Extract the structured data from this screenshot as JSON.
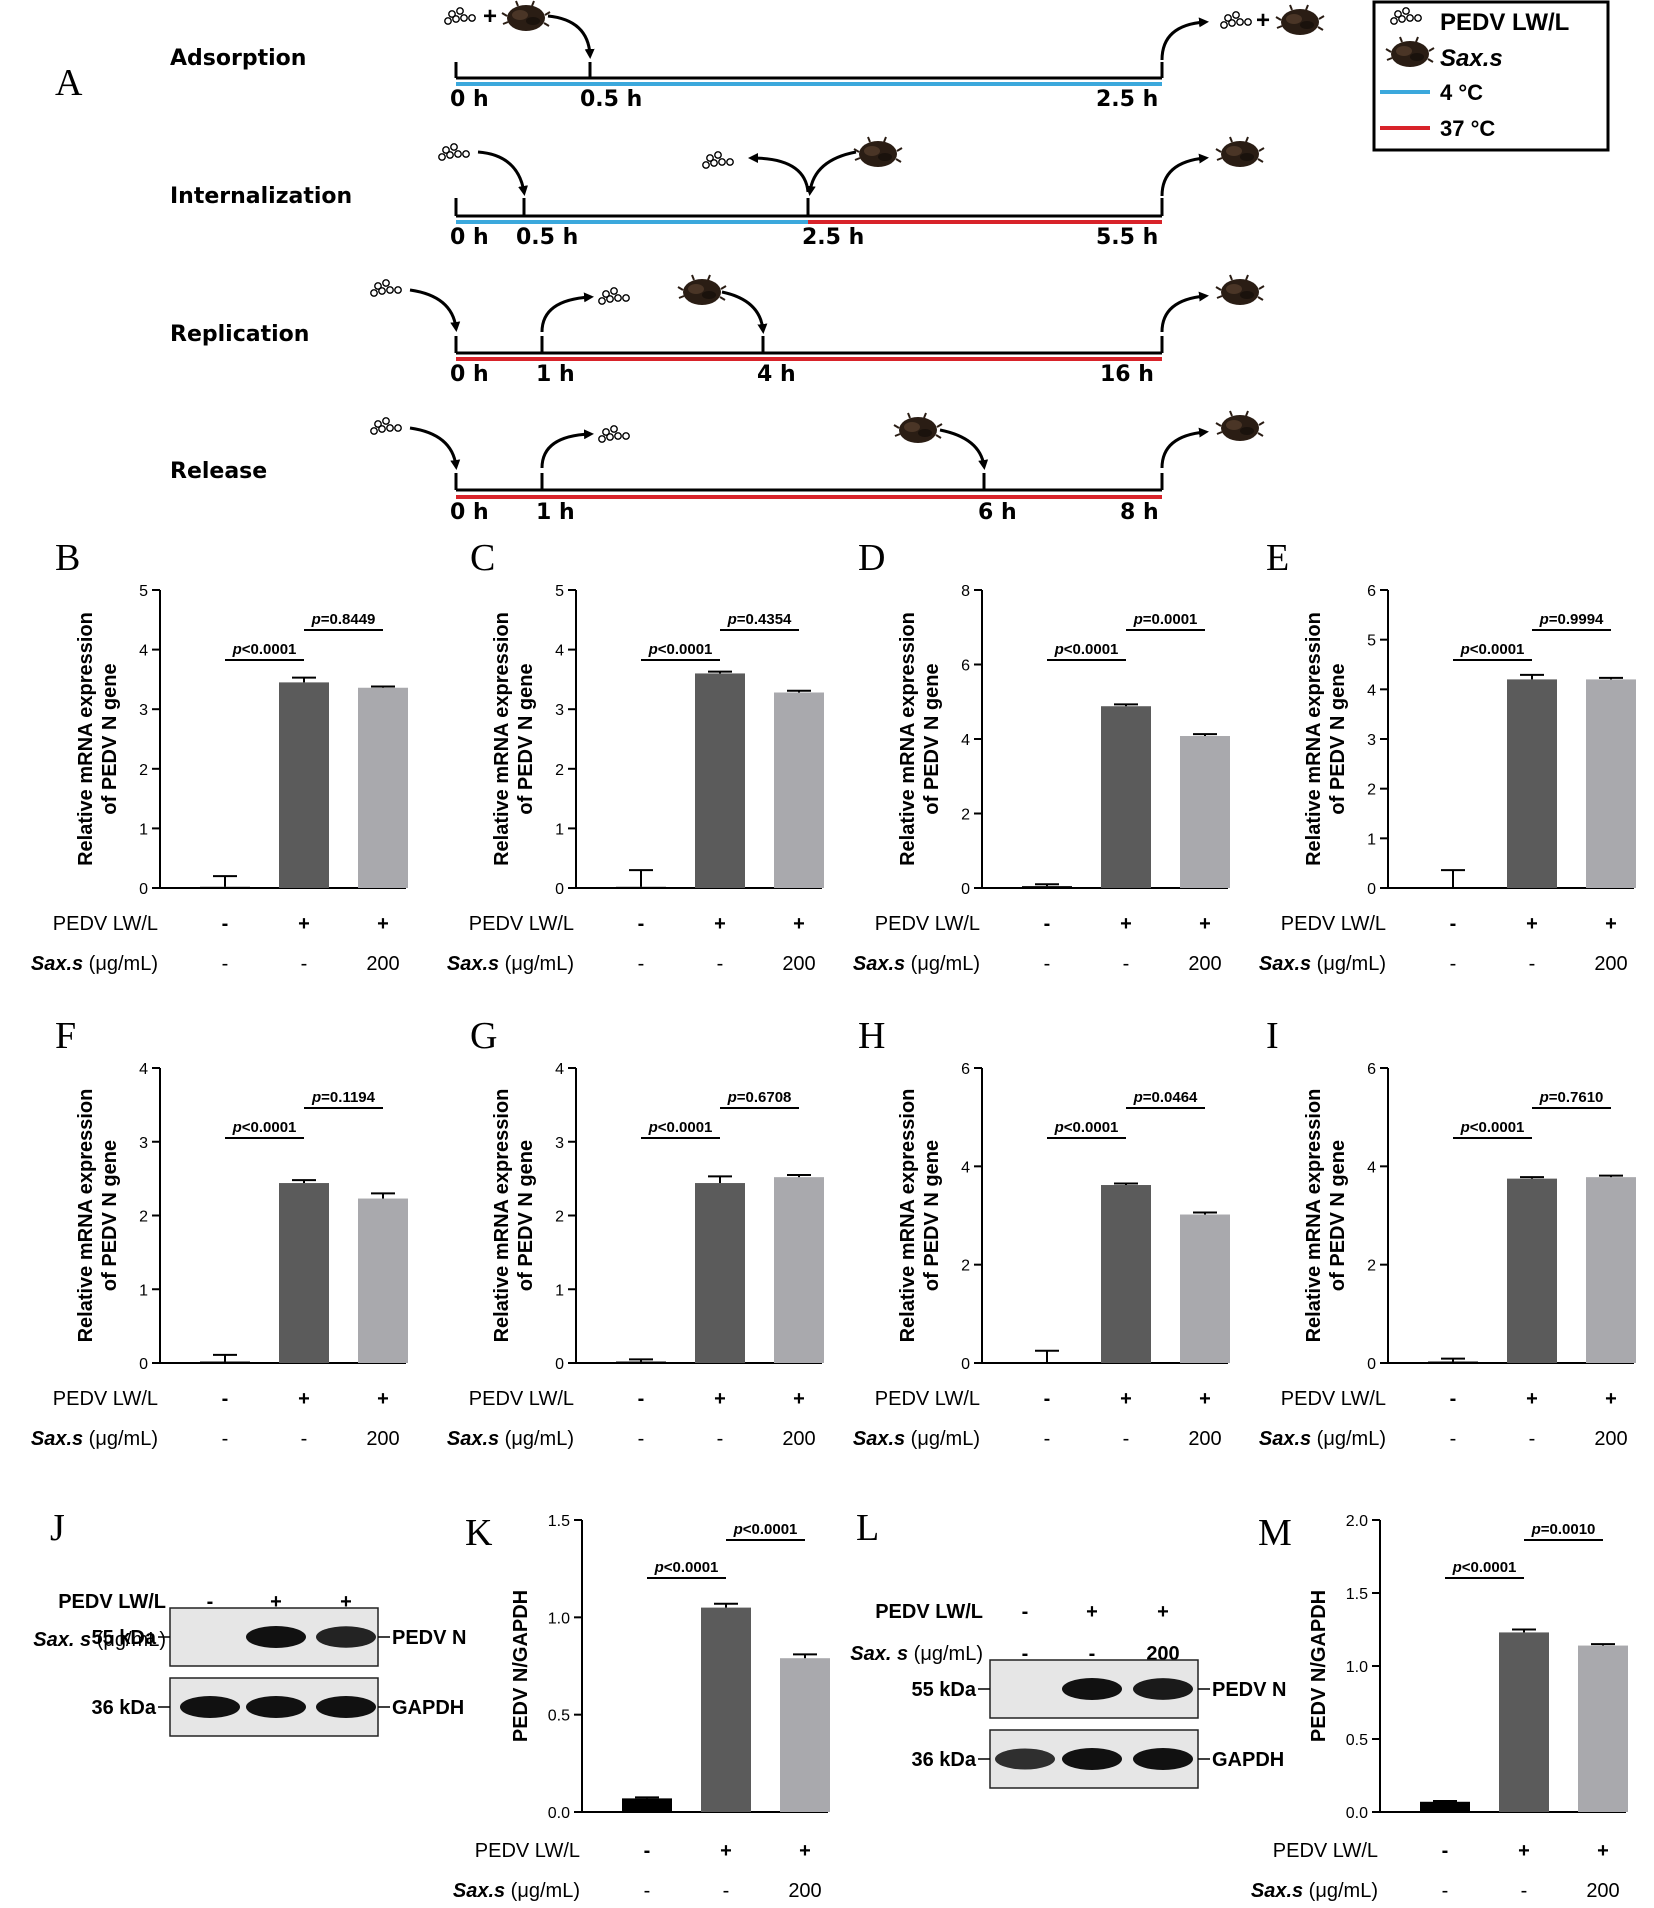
{
  "panel_A": {
    "letter": "A",
    "legend": {
      "virus": "PEDV LW/L",
      "drug": "Sax.s",
      "cold": "4 °C",
      "warm": "37 °C"
    },
    "colors": {
      "cold": "#3ba8dc",
      "warm": "#d8232a",
      "axis": "#000000"
    },
    "rows": [
      {
        "name": "Adsorption",
        "ticks": [
          "0 h",
          "0.5 h",
          "2.5 h"
        ]
      },
      {
        "name": "Internalization",
        "ticks": [
          "0 h",
          "0.5 h",
          "2.5 h",
          "5.5 h"
        ]
      },
      {
        "name": "Replication",
        "ticks": [
          "0 h",
          "1 h",
          "4 h",
          "16 h"
        ]
      },
      {
        "name": "Release",
        "ticks": [
          "0 h",
          "1 h",
          "6 h",
          "8 h"
        ]
      }
    ]
  },
  "common": {
    "ylabel_line1": "Relative mRNA expression",
    "ylabel_line2": "of PEDV N gene",
    "wb_ylabel": "PEDV N/GAPDH",
    "row1_label": "PEDV LW/L",
    "row2_label_italic": "Sax.s",
    "row2_label_rest": " (μg/mL)",
    "wb_row2_label_italic": "Sax. s",
    "row1_vals": [
      "-",
      "+",
      "+"
    ],
    "row2_vals": [
      "-",
      "-",
      "200"
    ],
    "bar_colors": [
      "#000000",
      "#5b5b5b",
      "#a9a9ad"
    ]
  },
  "chart_data": [
    {
      "letter": "B",
      "type": "bar",
      "ylim": [
        0,
        5
      ],
      "yticks": [
        "0",
        "1",
        "2",
        "3",
        "4",
        "5"
      ],
      "values": [
        0.02,
        3.45,
        3.36
      ],
      "errors": [
        0.18,
        0.08,
        0.02
      ],
      "p1": "<0.0001",
      "p2": "=0.8449"
    },
    {
      "letter": "C",
      "type": "bar",
      "ylim": [
        0,
        5
      ],
      "yticks": [
        "0",
        "1",
        "2",
        "3",
        "4",
        "5"
      ],
      "values": [
        0.02,
        3.6,
        3.28
      ],
      "errors": [
        0.28,
        0.03,
        0.03
      ],
      "p1": "<0.0001",
      "p2": "=0.4354"
    },
    {
      "letter": "D",
      "type": "bar",
      "ylim": [
        0,
        8
      ],
      "yticks": [
        "0",
        "2",
        "4",
        "6",
        "8"
      ],
      "values": [
        0.05,
        4.88,
        4.08
      ],
      "errors": [
        0.05,
        0.05,
        0.05
      ],
      "p1": "<0.0001",
      "p2": "=0.0001"
    },
    {
      "letter": "E",
      "type": "bar",
      "ylim": [
        0,
        6
      ],
      "yticks": [
        "0",
        "1",
        "2",
        "3",
        "4",
        "5",
        "6"
      ],
      "values": [
        0.02,
        4.2,
        4.2
      ],
      "errors": [
        0.34,
        0.09,
        0.03
      ],
      "p1": "<0.0001",
      "p2": "=0.9994"
    },
    {
      "letter": "F",
      "type": "bar",
      "ylim": [
        0,
        4
      ],
      "yticks": [
        "0",
        "1",
        "2",
        "3",
        "4"
      ],
      "values": [
        0.02,
        2.44,
        2.23
      ],
      "errors": [
        0.09,
        0.04,
        0.07
      ],
      "p1": "<0.0001",
      "p2": "=0.1194"
    },
    {
      "letter": "G",
      "type": "bar",
      "ylim": [
        0,
        4
      ],
      "yticks": [
        "0",
        "1",
        "2",
        "3",
        "4"
      ],
      "values": [
        0.02,
        2.44,
        2.52
      ],
      "errors": [
        0.03,
        0.09,
        0.03
      ],
      "p1": "<0.0001",
      "p2": "=0.6708"
    },
    {
      "letter": "H",
      "type": "bar",
      "ylim": [
        0,
        6
      ],
      "yticks": [
        "0",
        "2",
        "4",
        "6"
      ],
      "values": [
        0.02,
        3.62,
        3.02
      ],
      "errors": [
        0.23,
        0.03,
        0.04
      ],
      "p1": "<0.0001",
      "p2": "=0.0464"
    },
    {
      "letter": "I",
      "type": "bar",
      "ylim": [
        0,
        6
      ],
      "yticks": [
        "0",
        "2",
        "4",
        "6"
      ],
      "values": [
        0.03,
        3.75,
        3.78
      ],
      "errors": [
        0.06,
        0.03,
        0.03
      ],
      "p1": "<0.0001",
      "p2": "=0.7610"
    },
    {
      "letter": "K",
      "type": "bar",
      "ylim": [
        0,
        1.5
      ],
      "yticks": [
        "0.0",
        "0.5",
        "1.0",
        "1.5"
      ],
      "values": [
        0.07,
        1.05,
        0.79
      ],
      "errors": [
        0.005,
        0.02,
        0.02
      ],
      "p1": "<0.0001",
      "p2": "<0.0001"
    },
    {
      "letter": "M",
      "type": "bar",
      "ylim": [
        0,
        2.0
      ],
      "yticks": [
        "0.0",
        "0.5",
        "1.0",
        "1.5",
        "2.0"
      ],
      "values": [
        0.07,
        1.23,
        1.14
      ],
      "errors": [
        0.005,
        0.02,
        0.01
      ],
      "p1": "<0.0001",
      "p2": "=0.0010"
    }
  ],
  "blots": [
    {
      "letter": "J",
      "markers": [
        "55 kDa",
        "36 kDa"
      ],
      "targets": [
        "PEDV N",
        "GAPDH"
      ],
      "band_strength_pedv": [
        0.0,
        1.0,
        0.85
      ],
      "band_strength_gapdh": [
        1.0,
        1.0,
        1.0
      ]
    },
    {
      "letter": "L",
      "markers": [
        "55 kDa",
        "36 kDa"
      ],
      "targets": [
        "PEDV N",
        "GAPDH"
      ],
      "band_strength_pedv": [
        0.0,
        1.0,
        0.92
      ],
      "band_strength_gapdh": [
        0.75,
        1.0,
        1.0
      ]
    }
  ]
}
